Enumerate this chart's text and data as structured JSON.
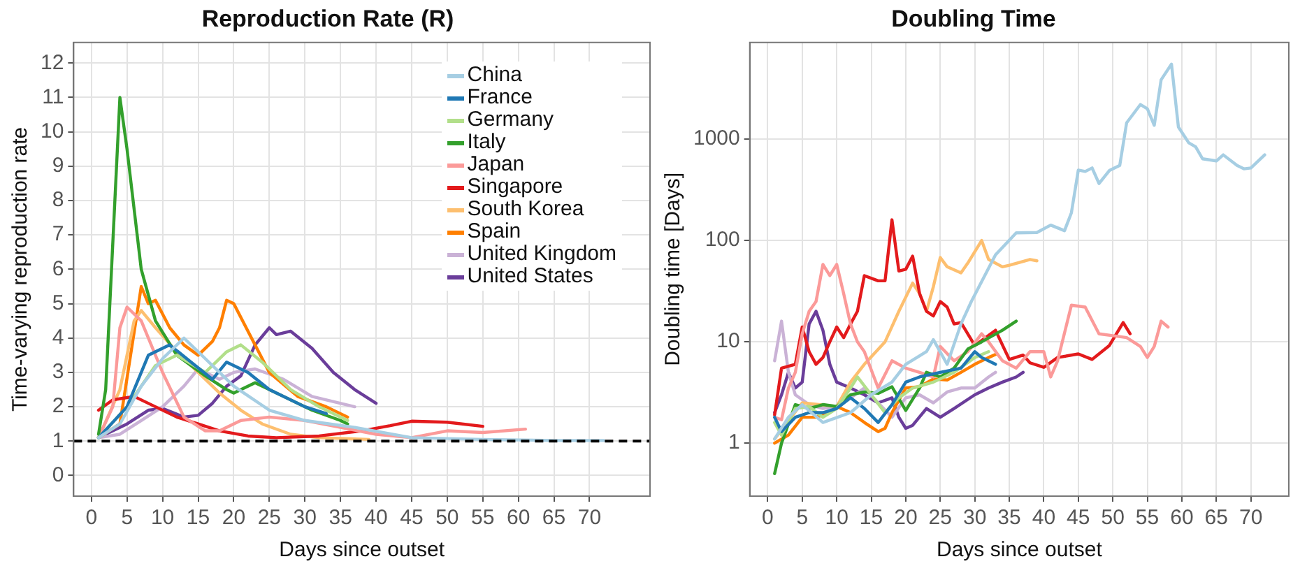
{
  "chart_data": [
    {
      "type": "line",
      "title": "Reproduction Rate (R)",
      "xlabel": "Days since outset",
      "ylabel": "Time-varying reproduction rate",
      "xlim": [
        -2.5,
        78.5
      ],
      "xticks": [
        0,
        5,
        10,
        15,
        20,
        25,
        30,
        35,
        40,
        45,
        50,
        55,
        60,
        65,
        70
      ],
      "ylim": [
        -0.6,
        12.6
      ],
      "yticks": [
        0,
        1,
        2,
        3,
        4,
        5,
        6,
        7,
        8,
        9,
        10,
        11,
        12
      ],
      "grid": true,
      "legend": "top right",
      "ref_lines": [
        {
          "axis": "y",
          "value": 1,
          "color": "#000000",
          "line_style": "dashed"
        }
      ],
      "series": [
        {
          "name": "China",
          "color": "#a6cee3",
          "x": [
            1,
            4,
            7,
            10,
            13,
            16,
            20,
            25,
            30,
            37,
            45,
            55,
            65,
            72
          ],
          "values": [
            1.1,
            1.5,
            2.6,
            3.4,
            4.0,
            3.4,
            2.6,
            1.9,
            1.6,
            1.4,
            1.1,
            1.05,
            1.02,
            1.02
          ]
        },
        {
          "name": "France",
          "color": "#1f78b4",
          "x": [
            1,
            5,
            8,
            11,
            14,
            17,
            19,
            22,
            25,
            30,
            33
          ],
          "values": [
            1.1,
            2.0,
            3.5,
            3.8,
            3.3,
            2.8,
            3.3,
            3.0,
            2.5,
            2.0,
            1.8
          ]
        },
        {
          "name": "Germany",
          "color": "#b2df8a",
          "x": [
            1,
            5,
            9,
            12,
            16,
            19,
            21,
            24,
            28,
            32,
            36
          ],
          "values": [
            1.1,
            2.0,
            3.2,
            3.5,
            3.0,
            3.6,
            3.8,
            3.3,
            2.5,
            2.0,
            1.6
          ]
        },
        {
          "name": "Italy",
          "color": "#33a02c",
          "x": [
            1,
            2,
            4,
            5,
            7,
            9,
            12,
            16,
            19,
            20,
            23,
            27,
            31,
            35,
            36
          ],
          "values": [
            1.2,
            2.5,
            11.0,
            9.5,
            6.0,
            4.5,
            3.5,
            2.9,
            2.5,
            2.4,
            2.7,
            2.3,
            1.9,
            1.6,
            1.5
          ]
        },
        {
          "name": "Japan",
          "color": "#fb9a99",
          "x": [
            1,
            3,
            4,
            5,
            7,
            10,
            13,
            16,
            18,
            21,
            25,
            30,
            35,
            40,
            45,
            50,
            55,
            61
          ],
          "values": [
            1.1,
            2.0,
            4.3,
            4.9,
            4.5,
            3.0,
            1.7,
            1.3,
            1.3,
            1.6,
            1.7,
            1.6,
            1.4,
            1.2,
            1.1,
            1.3,
            1.25,
            1.35
          ]
        },
        {
          "name": "Singapore",
          "color": "#e31a1c",
          "x": [
            1,
            3,
            6,
            9,
            12,
            15,
            18,
            22,
            26,
            32,
            38,
            42,
            45,
            50,
            55
          ],
          "values": [
            1.9,
            2.2,
            2.3,
            2.0,
            1.7,
            1.5,
            1.3,
            1.15,
            1.1,
            1.15,
            1.3,
            1.45,
            1.58,
            1.55,
            1.43
          ]
        },
        {
          "name": "South Korea",
          "color": "#fdbf6f",
          "x": [
            1,
            4,
            6,
            7,
            9,
            12,
            15,
            18,
            21,
            24,
            28,
            32,
            39
          ],
          "values": [
            1.1,
            2.5,
            4.5,
            4.8,
            4.3,
            3.6,
            3.0,
            2.4,
            1.9,
            1.5,
            1.2,
            1.1,
            1.05
          ]
        },
        {
          "name": "Spain",
          "color": "#ff7f00",
          "x": [
            1,
            4,
            7,
            8,
            9,
            11,
            13,
            15,
            17,
            18,
            19,
            20,
            22,
            25,
            29,
            33,
            36
          ],
          "values": [
            1.1,
            1.5,
            5.5,
            5.0,
            5.1,
            4.3,
            3.8,
            3.5,
            3.9,
            4.3,
            5.1,
            5.0,
            4.2,
            3.0,
            2.3,
            2.0,
            1.7
          ]
        },
        {
          "name": "United Kingdom",
          "color": "#cab2d6",
          "x": [
            1,
            4,
            7,
            10,
            13,
            15,
            18,
            20,
            23,
            27,
            31,
            37
          ],
          "values": [
            1.1,
            1.2,
            1.6,
            2.0,
            2.6,
            3.1,
            2.8,
            3.0,
            3.1,
            2.8,
            2.3,
            2.0
          ]
        },
        {
          "name": "United States",
          "color": "#6a3d9a",
          "x": [
            1,
            5,
            8,
            10,
            13,
            15,
            17,
            19,
            21,
            23,
            25,
            26,
            28,
            31,
            34,
            37,
            40
          ],
          "values": [
            1.1,
            1.5,
            1.9,
            1.95,
            1.7,
            1.75,
            2.1,
            2.6,
            2.9,
            3.8,
            4.3,
            4.1,
            4.2,
            3.7,
            3.0,
            2.5,
            2.1
          ]
        }
      ]
    },
    {
      "type": "line",
      "title": "Doubling Time",
      "xlabel": "Days since outset",
      "ylabel": "Doubling time [Days]",
      "log": "y",
      "xlim": [
        -2.6,
        75.5
      ],
      "xticks": [
        0,
        5,
        10,
        15,
        20,
        25,
        30,
        35,
        40,
        45,
        50,
        55,
        60,
        65,
        70
      ],
      "ylim": [
        0.31,
        9000
      ],
      "yticks": [
        1,
        10,
        100,
        1000
      ],
      "grid": true,
      "series": [
        {
          "color": "#a6cee3",
          "x": [
            1,
            3,
            5,
            8,
            12,
            15,
            18,
            20,
            23,
            24,
            26,
            28,
            29.5,
            33,
            36,
            39,
            41,
            43,
            44,
            45,
            46,
            47,
            48,
            49.5,
            51,
            52,
            54,
            55,
            56,
            57,
            58.5,
            59.5,
            61,
            62,
            63,
            65,
            66,
            68,
            69,
            70,
            72
          ],
          "values": [
            1.1,
            1.8,
            2.4,
            1.6,
            2.0,
            3.0,
            4.0,
            6.0,
            8.0,
            10.5,
            6.0,
            15,
            25,
            72,
            119,
            120,
            142,
            125,
            188,
            495,
            480,
            520,
            365,
            490,
            550,
            1450,
            2200,
            2000,
            1370,
            3860,
            5500,
            1320,
            920,
            840,
            640,
            610,
            700,
            550,
            510,
            520,
            700
          ]
        },
        {
          "color": "#1f78b4",
          "x": [
            1,
            2,
            4,
            6,
            8,
            10,
            12,
            14,
            16,
            18,
            20,
            22,
            25,
            28,
            30,
            31,
            33
          ],
          "values": [
            1.8,
            1.3,
            1.8,
            2.0,
            2.0,
            2.2,
            2.8,
            2.2,
            1.6,
            2.4,
            4.0,
            4.5,
            5.0,
            5.5,
            8.0,
            7.0,
            6.0
          ]
        },
        {
          "color": "#b2df8a",
          "x": [
            1,
            2,
            4,
            6,
            8,
            10,
            12,
            13,
            15,
            17,
            19,
            21,
            24,
            27,
            30,
            32
          ],
          "values": [
            1.6,
            1.2,
            2.2,
            2.3,
            1.8,
            2.2,
            3.5,
            4.5,
            3.0,
            2.0,
            2.8,
            3.5,
            4.0,
            5.0,
            7.0,
            8.0
          ]
        },
        {
          "color": "#33a02c",
          "x": [
            1,
            2,
            4,
            6,
            8,
            10,
            12,
            14,
            16,
            18,
            20,
            22,
            23,
            25,
            27,
            29,
            31,
            34,
            36
          ],
          "values": [
            0.5,
            1.0,
            2.4,
            2.2,
            2.4,
            2.3,
            3.0,
            3.2,
            3.1,
            3.6,
            2.1,
            3.5,
            5.0,
            4.5,
            5.5,
            8.5,
            10,
            13,
            16
          ]
        },
        {
          "color": "#fb9a99",
          "x": [
            1,
            2,
            3,
            4,
            5,
            6,
            7,
            8,
            9,
            10,
            11,
            12,
            13,
            14,
            16,
            18,
            20,
            22,
            24,
            25,
            27,
            29,
            31,
            32,
            34,
            36,
            38,
            40,
            41,
            42,
            44,
            46,
            48,
            50,
            52,
            54,
            55,
            56,
            57,
            58
          ],
          "values": [
            1.8,
            1.7,
            3.5,
            5,
            12,
            20,
            25,
            58,
            45,
            58,
            30,
            15,
            10,
            8,
            3.5,
            6.5,
            5.5,
            5,
            4.5,
            9,
            6.5,
            8,
            12,
            10,
            6.5,
            5.5,
            8,
            8,
            4.5,
            6.5,
            23,
            22,
            12,
            11.5,
            11,
            9,
            7,
            9,
            16,
            14
          ]
        },
        {
          "color": "#e31a1c",
          "x": [
            1,
            2,
            4,
            5,
            6,
            7,
            8,
            9,
            10,
            11,
            12,
            13,
            14,
            16,
            17,
            18,
            19,
            20,
            21,
            22,
            23,
            24,
            25,
            26,
            27,
            28,
            30,
            33,
            35,
            37,
            38,
            40,
            42,
            45,
            47,
            49.5,
            51.5,
            52.5
          ],
          "values": [
            1.9,
            5.5,
            6,
            14,
            8,
            6,
            7,
            10,
            14,
            11,
            15,
            20,
            45,
            40,
            40,
            160,
            50,
            52,
            70,
            30,
            20,
            18,
            25,
            22,
            15,
            15.5,
            9.2,
            13,
            6.7,
            7.4,
            6.2,
            5.6,
            7,
            7.6,
            6.7,
            9.2,
            15.5,
            12
          ]
        },
        {
          "color": "#fdbf6f",
          "x": [
            1,
            5,
            10,
            12,
            14,
            17,
            19,
            21,
            22,
            23,
            24,
            25,
            26,
            28,
            29,
            31,
            32,
            34,
            35,
            38,
            39
          ],
          "values": [
            1.1,
            2.5,
            2.3,
            4,
            6,
            10,
            20,
            38,
            30,
            20,
            35,
            68,
            55,
            48,
            60,
            100,
            65,
            55,
            57,
            65,
            63
          ]
        },
        {
          "color": "#ff7f00",
          "x": [
            1,
            3,
            5,
            7,
            9,
            10,
            12,
            14,
            16,
            17,
            18,
            20,
            22,
            24,
            26,
            28,
            30,
            32,
            33
          ],
          "values": [
            1.0,
            1.2,
            1.8,
            1.8,
            2.0,
            2.3,
            2.0,
            1.6,
            1.3,
            1.4,
            2.0,
            3.5,
            3.6,
            4.3,
            4.2,
            5.0,
            6.0,
            7.0,
            7.5
          ]
        },
        {
          "color": "#cab2d6",
          "x": [
            1,
            2,
            3,
            4,
            6,
            8,
            10,
            12,
            14,
            16,
            18,
            20,
            22,
            24,
            26,
            28,
            30,
            32,
            33
          ],
          "values": [
            6.5,
            16,
            5,
            3,
            2.4,
            2.2,
            2.3,
            2.8,
            3.5,
            2.5,
            1.8,
            2.8,
            3.0,
            2.5,
            3.2,
            3.5,
            3.5,
            4.5,
            5.0
          ]
        },
        {
          "color": "#6a3d9a",
          "x": [
            1,
            2,
            3,
            4,
            5,
            6,
            7,
            8,
            9,
            10,
            12,
            14,
            16,
            18,
            19,
            20,
            21,
            23,
            25,
            27,
            30,
            32,
            34,
            36,
            37
          ],
          "values": [
            2,
            3,
            5,
            3.5,
            4,
            15,
            20,
            13,
            6,
            4,
            3.5,
            3,
            2.5,
            2.8,
            1.8,
            1.4,
            1.5,
            2.2,
            1.8,
            2.2,
            3,
            3.5,
            4,
            4.5,
            5
          ]
        }
      ]
    }
  ]
}
